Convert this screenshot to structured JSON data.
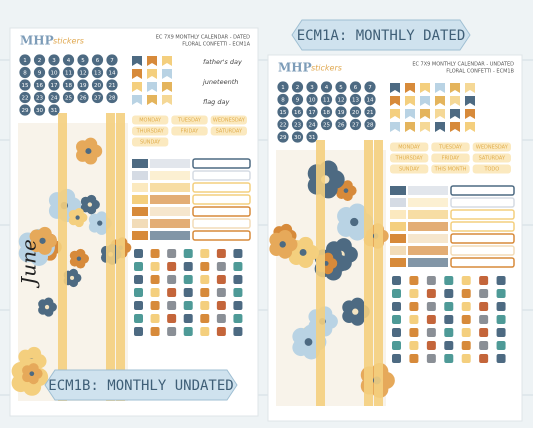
{
  "banners": [
    "ECM1A: MONTHLY DATED",
    "ECM1B: MONTHLY UNDATED"
  ],
  "sheets": [
    {
      "brand": "MHP",
      "brand_suffix": "stickers",
      "title": "EC 7X9 MONTHLY CALENDAR - DATED",
      "subtitle": "FLORAL CONFETTI - ECM1A",
      "day_numbers": [
        1,
        2,
        3,
        4,
        5,
        6,
        7,
        8,
        9,
        10,
        11,
        12,
        13,
        14,
        15,
        16,
        17,
        18,
        19,
        20,
        21,
        22,
        23,
        24,
        25,
        26,
        27,
        28,
        29,
        30,
        31
      ],
      "holidays": [
        "father's day",
        "juneteenth",
        "flag day"
      ],
      "month_label": "June",
      "weekday_labels": [
        "MONDAY",
        "TUESDAY",
        "WEDNESDAY",
        "THURSDAY",
        "FRIDAY",
        "SATURDAY",
        "SUNDAY"
      ]
    },
    {
      "brand": "MHP",
      "brand_suffix": "stickers",
      "title": "EC 7X9 MONTHLY CALENDAR - UNDATED",
      "subtitle": "FLORAL CONFETTI - ECM1B",
      "day_numbers": [
        1,
        2,
        3,
        4,
        5,
        6,
        7,
        8,
        9,
        10,
        11,
        12,
        13,
        14,
        15,
        16,
        17,
        18,
        19,
        20,
        21,
        22,
        23,
        24,
        25,
        26,
        27,
        28,
        29,
        30,
        31
      ],
      "weekday_labels": [
        "MONDAY",
        "TUESDAY",
        "WEDNESDAY",
        "THURSDAY",
        "FRIDAY",
        "SATURDAY",
        "SUNDAY",
        "THIS MONTH",
        "TODO"
      ]
    }
  ]
}
